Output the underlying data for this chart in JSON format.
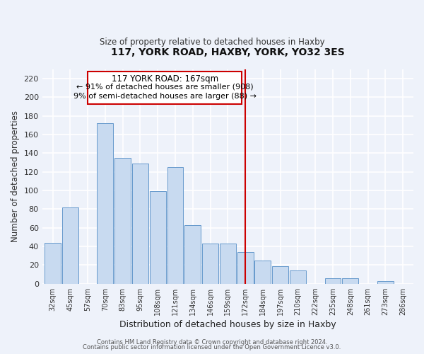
{
  "title": "117, YORK ROAD, HAXBY, YORK, YO32 3ES",
  "subtitle": "Size of property relative to detached houses in Haxby",
  "xlabel": "Distribution of detached houses by size in Haxby",
  "ylabel": "Number of detached properties",
  "bar_labels": [
    "32sqm",
    "45sqm",
    "57sqm",
    "70sqm",
    "83sqm",
    "95sqm",
    "108sqm",
    "121sqm",
    "134sqm",
    "146sqm",
    "159sqm",
    "172sqm",
    "184sqm",
    "197sqm",
    "210sqm",
    "222sqm",
    "235sqm",
    "248sqm",
    "261sqm",
    "273sqm",
    "286sqm"
  ],
  "bar_values": [
    44,
    82,
    0,
    172,
    135,
    129,
    99,
    125,
    63,
    43,
    43,
    34,
    25,
    19,
    14,
    0,
    6,
    6,
    0,
    3,
    0
  ],
  "bar_color": "#c8daf0",
  "bar_edgecolor": "#6699cc",
  "vline_x": 11.0,
  "vline_color": "#cc0000",
  "annotation_title": "117 YORK ROAD: 167sqm",
  "annotation_line1": "← 91% of detached houses are smaller (908)",
  "annotation_line2": "9% of semi-detached houses are larger (88) →",
  "ylim": [
    0,
    230
  ],
  "yticks": [
    0,
    20,
    40,
    60,
    80,
    100,
    120,
    140,
    160,
    180,
    200,
    220
  ],
  "footer1": "Contains HM Land Registry data © Crown copyright and database right 2024.",
  "footer2": "Contains public sector information licensed under the Open Government Licence v3.0.",
  "bg_color": "#eef2fa",
  "grid_color": "#d0d8e8"
}
